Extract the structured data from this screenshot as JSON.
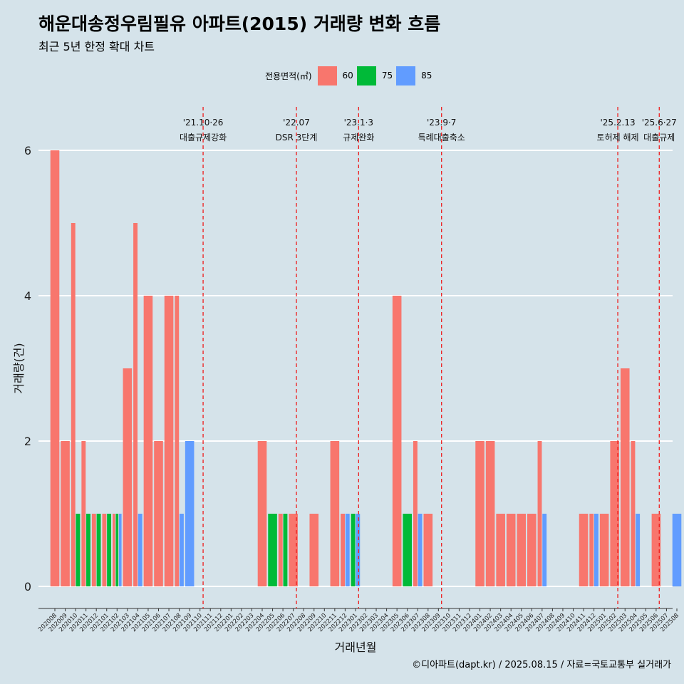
{
  "title": "해운대송정우림필유 아파트(2015) 거래량 변화 흐름",
  "subtitle": "최근 5년 한정 확대 차트",
  "caption": "©디아파트(dapt.kr) / 2025.08.15 / 자료=국토교통부 실거래가",
  "legend": {
    "title": "전용면적(㎡)",
    "items": [
      {
        "label": "60",
        "color": "#F8766D"
      },
      {
        "label": "75",
        "color": "#00BA38"
      },
      {
        "label": "85",
        "color": "#619CFF"
      }
    ]
  },
  "chart_data": {
    "type": "bar",
    "xlabel": "거래년월",
    "ylabel": "거래량(건)",
    "ylim": [
      -0.3,
      6.0
    ],
    "yticks": [
      0,
      2,
      4,
      6
    ],
    "grid": true,
    "legend_position": "top",
    "categories": [
      "202008",
      "202009",
      "202010",
      "202011",
      "202012",
      "202101",
      "202102",
      "202103",
      "202104",
      "202105",
      "202106",
      "202107",
      "202108",
      "202109",
      "202110",
      "202111",
      "202112",
      "202201",
      "202202",
      "202203",
      "202204",
      "202205",
      "202206",
      "202207",
      "202208",
      "202209",
      "202210",
      "202211",
      "202212",
      "202301",
      "202302",
      "202303",
      "202304",
      "202305",
      "202306",
      "202307",
      "202308",
      "202309",
      "202310",
      "202311",
      "202312",
      "202401",
      "202402",
      "202403",
      "202404",
      "202405",
      "202406",
      "202407",
      "202408",
      "202409",
      "202410",
      "202411",
      "202412",
      "202501",
      "202502",
      "202503",
      "202504",
      "202505",
      "202506",
      "202507",
      "202508"
    ],
    "series": [
      {
        "name": "60",
        "color": "#F8766D",
        "values": [
          6,
          2,
          5,
          2,
          1,
          1,
          1,
          3,
          5,
          4,
          2,
          4,
          4,
          0,
          0,
          0,
          0,
          0,
          0,
          0,
          2,
          0,
          1,
          1,
          0,
          1,
          0,
          2,
          1,
          0,
          0,
          0,
          0,
          4,
          0,
          2,
          1,
          0,
          0,
          0,
          0,
          2,
          2,
          1,
          1,
          1,
          1,
          2,
          0,
          0,
          0,
          1,
          1,
          1,
          2,
          3,
          2,
          0,
          1,
          0,
          0
        ]
      },
      {
        "name": "75",
        "color": "#00BA38",
        "values": [
          0,
          0,
          1,
          1,
          1,
          1,
          1,
          0,
          0,
          0,
          0,
          0,
          0,
          0,
          0,
          0,
          0,
          0,
          0,
          0,
          0,
          1,
          1,
          0,
          0,
          0,
          0,
          0,
          0,
          1,
          0,
          0,
          0,
          0,
          1,
          0,
          0,
          0,
          0,
          0,
          0,
          0,
          0,
          0,
          0,
          0,
          0,
          0,
          0,
          0,
          0,
          0,
          0,
          0,
          0,
          0,
          0,
          0,
          0,
          0,
          0
        ]
      },
      {
        "name": "85",
        "color": "#619CFF",
        "values": [
          0,
          0,
          0,
          0,
          0,
          0,
          1,
          0,
          1,
          0,
          0,
          0,
          1,
          2,
          0,
          0,
          0,
          0,
          0,
          0,
          0,
          0,
          0,
          0,
          0,
          0,
          0,
          0,
          1,
          1,
          0,
          0,
          0,
          0,
          0,
          1,
          0,
          0,
          0,
          0,
          0,
          0,
          0,
          0,
          0,
          0,
          0,
          1,
          0,
          0,
          0,
          0,
          1,
          0,
          0,
          0,
          1,
          0,
          0,
          0,
          1
        ]
      }
    ],
    "events": [
      {
        "x": "202110",
        "date": "'21.10·26",
        "label": "대출규제강화"
      },
      {
        "x": "202207",
        "date": "'22.07",
        "label": "DSR 3단계"
      },
      {
        "x": "202301",
        "date": "'23.1·3",
        "label": "규제완화"
      },
      {
        "x": "202309",
        "date": "'23.9·7",
        "label": "특례대출축소"
      },
      {
        "x": "202502",
        "date": "'25.2.13",
        "label": "토허제 해제"
      },
      {
        "x": "202506",
        "date": "'25.6·27",
        "label": "대출규제"
      }
    ]
  }
}
